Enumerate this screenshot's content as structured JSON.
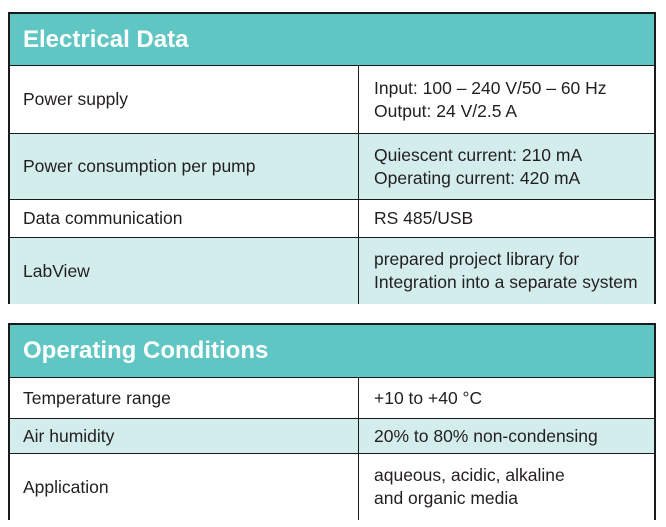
{
  "electrical": {
    "title": "Electrical Data",
    "rows": [
      {
        "label": "Power supply",
        "lines": [
          "Input: 100 – 240 V/50 – 60 Hz",
          "Output: 24 V/2.5 A"
        ]
      },
      {
        "label": "Power consumption per pump",
        "lines": [
          "Quiescent current: 210 mA",
          "Operating current: 420 mA"
        ]
      },
      {
        "label": "Data communication",
        "lines": [
          "RS 485/USB"
        ]
      },
      {
        "label": "LabView",
        "lines": [
          "prepared project library for",
          "Integration into a separate system"
        ]
      }
    ]
  },
  "operating": {
    "title": "Operating Conditions",
    "rows": [
      {
        "label": "Temperature range",
        "lines": [
          "+10 to +40 °C"
        ]
      },
      {
        "label": "Air humidity",
        "lines": [
          "20% to 80% non-condensing"
        ]
      },
      {
        "label": "Application",
        "lines": [
          "aqueous, acidic, alkaline",
          "and organic media"
        ]
      }
    ]
  },
  "colors": {
    "header_bg": "#5fc6c4",
    "shaded_row_bg": "#d3ecec",
    "border": "#1a1a1a"
  }
}
